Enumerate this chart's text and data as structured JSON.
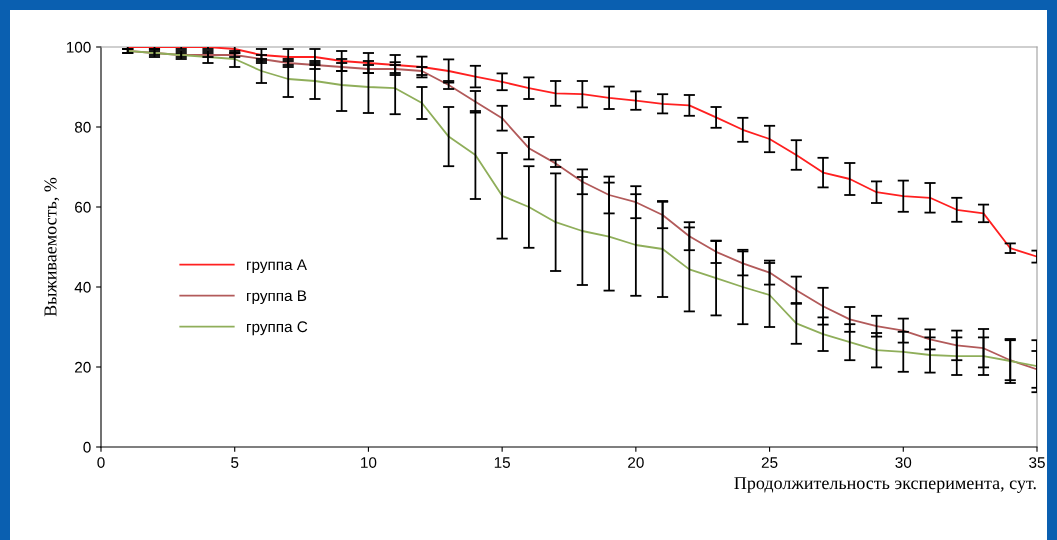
{
  "chart_data": {
    "type": "line",
    "xlabel": "Продолжительность эксперимента, сут.",
    "ylabel": "Выживаемость, %",
    "x": [
      1,
      2,
      3,
      4,
      5,
      6,
      7,
      8,
      9,
      10,
      11,
      12,
      13,
      14,
      15,
      16,
      17,
      18,
      19,
      20,
      21,
      22,
      23,
      24,
      25,
      26,
      27,
      28,
      29,
      30,
      31,
      32,
      33,
      34,
      35
    ],
    "series": [
      {
        "name": "группа А",
        "color": "#ff2020",
        "values": [
          100,
          100,
          100,
          100,
          99.5,
          98,
          97.5,
          97.5,
          96.5,
          96,
          95.5,
          95,
          94,
          92.6,
          91.3,
          89.7,
          88.4,
          88.2,
          87.3,
          86.6,
          85.8,
          85.4,
          82.4,
          79.3,
          77,
          73,
          68.6,
          67,
          63.7,
          62.7,
          62.3,
          59.3,
          58.4,
          49.7,
          47.6
        ],
        "errors": [
          0.5,
          0.5,
          0.5,
          0.5,
          1,
          1.5,
          2,
          2,
          2.5,
          2.5,
          2.5,
          2.6,
          2.9,
          2.7,
          2.1,
          2.7,
          3.1,
          3.3,
          2.8,
          2.3,
          2.4,
          2.6,
          2.6,
          3,
          3.3,
          3.7,
          3.7,
          4,
          2.7,
          3.9,
          3.7,
          3,
          2.2,
          1.2,
          1.5
        ]
      },
      {
        "name": "группа В",
        "color": "#b25a5a",
        "values": [
          99,
          98.5,
          98,
          98,
          98,
          97,
          96,
          95.5,
          95,
          94.5,
          94.5,
          94,
          90.5,
          86.3,
          82.2,
          74.7,
          70.9,
          66.3,
          63,
          61.2,
          58,
          52.7,
          48.8,
          45.9,
          43.6,
          39.2,
          35.2,
          31.9,
          30.2,
          29.1,
          26.9,
          25.4,
          24.7,
          21.7,
          19.4
        ],
        "errors": [
          0.5,
          0.5,
          0.5,
          0.5,
          0.5,
          1,
          1,
          1,
          1,
          1,
          1,
          1,
          1,
          2.7,
          3.1,
          2.8,
          0.9,
          3.1,
          4.6,
          4,
          3.3,
          3.5,
          2.8,
          3,
          3,
          3.4,
          4.6,
          3.1,
          2.6,
          3,
          2.5,
          3.7,
          4.8,
          5,
          4.6
        ]
      },
      {
        "name": "группа С",
        "color": "#8fae5a",
        "values": [
          99,
          98.5,
          98,
          97.5,
          97,
          94,
          92,
          91.5,
          90.5,
          90,
          89.7,
          86,
          77.6,
          73,
          62.8,
          60,
          56.2,
          54,
          52.6,
          50.5,
          49.5,
          44.4,
          42.2,
          40,
          38,
          30.9,
          28.2,
          26.2,
          24.2,
          23.8,
          23,
          22.7,
          22.7,
          21.5,
          20.2
        ],
        "errors": [
          0.5,
          1,
          1,
          1.5,
          2,
          3,
          4.5,
          4.5,
          6.5,
          6.5,
          6.5,
          4,
          7.4,
          11,
          10.7,
          10.2,
          12.2,
          13.5,
          13.5,
          12.7,
          12,
          10.5,
          9.3,
          9.3,
          8,
          5.1,
          4.2,
          4.5,
          4.3,
          5,
          4.4,
          4.7,
          4.7,
          5.5,
          6.5
        ]
      }
    ],
    "xlim": [
      0,
      35
    ],
    "xticks": [
      0,
      5,
      10,
      15,
      20,
      25,
      30,
      35
    ],
    "ylim": [
      0,
      100
    ],
    "yticks": [
      0,
      20,
      40,
      60,
      80,
      100
    ],
    "legend": "left",
    "grid": false,
    "marker": "none",
    "line_style": "solid"
  }
}
